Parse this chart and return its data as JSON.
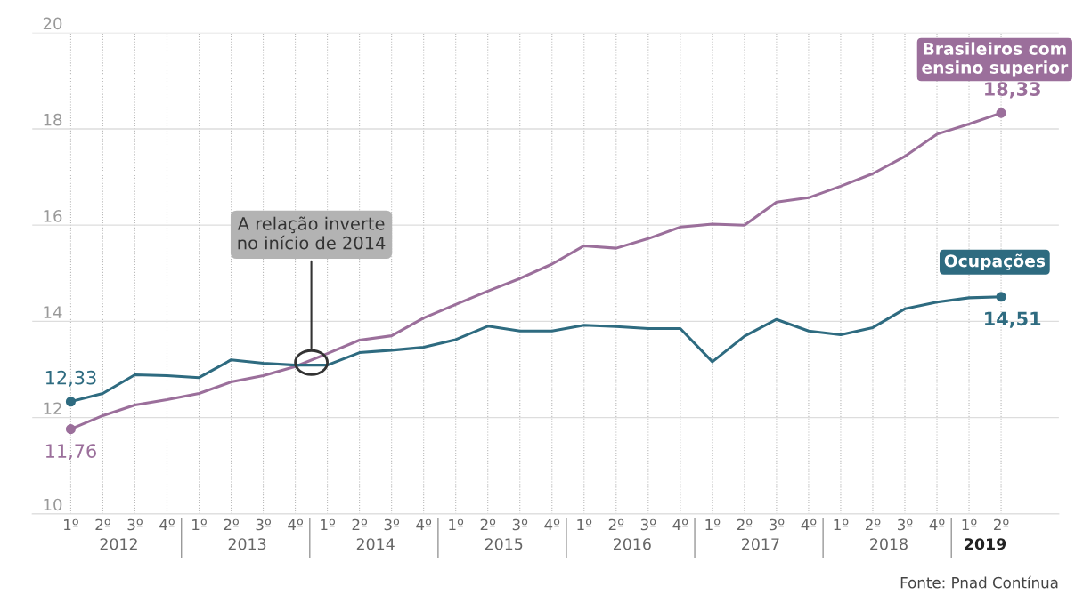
{
  "chart_data": {
    "type": "line",
    "categories": [
      "1º",
      "2º",
      "3º",
      "4º",
      "1º",
      "2º",
      "3º",
      "4º",
      "1º",
      "2º",
      "3º",
      "4º",
      "1º",
      "2º",
      "3º",
      "4º",
      "1º",
      "2º",
      "3º",
      "4º",
      "1º",
      "2º",
      "3º",
      "4º",
      "1º",
      "2º",
      "3º",
      "4º",
      "1º",
      "2º"
    ],
    "series": [
      {
        "name": "Brasileiros com ensino superior",
        "color": "#9b6f9b",
        "values": [
          11.76,
          12.04,
          12.26,
          12.37,
          12.5,
          12.74,
          12.87,
          13.06,
          13.33,
          13.61,
          13.7,
          14.07,
          14.35,
          14.63,
          14.89,
          15.19,
          15.57,
          15.52,
          15.72,
          15.96,
          16.02,
          16.0,
          16.48,
          16.57,
          16.81,
          17.07,
          17.43,
          17.89,
          18.1,
          18.33
        ],
        "value_labels": [
          "11,76",
          null,
          null,
          null,
          null,
          null,
          null,
          null,
          null,
          null,
          null,
          null,
          null,
          null,
          null,
          null,
          null,
          null,
          null,
          null,
          null,
          null,
          null,
          null,
          null,
          null,
          null,
          null,
          null,
          "18,33"
        ]
      },
      {
        "name": "Ocupações",
        "color": "#2e6b80",
        "values": [
          12.33,
          12.5,
          12.89,
          12.87,
          12.83,
          13.2,
          13.13,
          13.09,
          13.09,
          13.35,
          13.4,
          13.46,
          13.62,
          13.9,
          13.8,
          13.8,
          13.92,
          13.89,
          13.85,
          13.85,
          13.16,
          13.69,
          14.04,
          13.8,
          13.72,
          13.87,
          14.26,
          14.4,
          14.49,
          14.51
        ],
        "value_labels": [
          "12,33",
          null,
          null,
          null,
          null,
          null,
          null,
          null,
          null,
          null,
          null,
          null,
          null,
          null,
          null,
          null,
          null,
          null,
          null,
          null,
          null,
          null,
          null,
          null,
          null,
          null,
          null,
          null,
          null,
          "14,51"
        ]
      }
    ],
    "ylim": [
      10,
      20
    ],
    "yticks": [
      10,
      12,
      14,
      16,
      18,
      20
    ],
    "grid": true,
    "legend": false,
    "marker": "none",
    "line_style": "solid",
    "annotations": [
      "A relação inverte\nno início de 2014",
      "Fonte: Pnad Contínua",
      "2012",
      "2013",
      "2014",
      "2015",
      "2016",
      "2017",
      "2018",
      "2019"
    ]
  }
}
